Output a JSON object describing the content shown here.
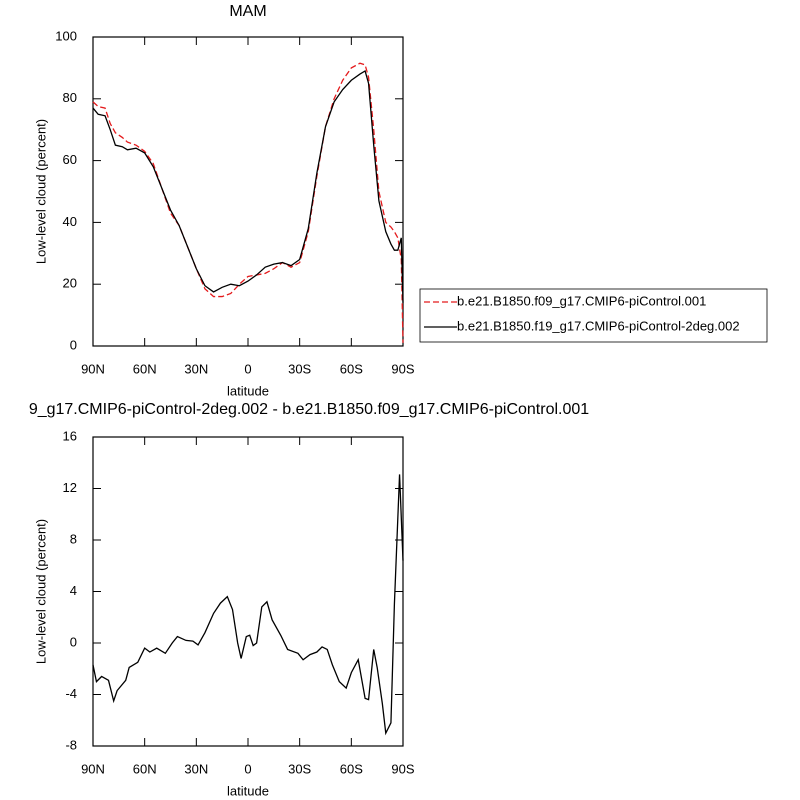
{
  "chart_data": [
    {
      "type": "line",
      "title": "MAM",
      "xlabel": "latitude",
      "ylabel": "Low-level cloud (percent)",
      "x": [
        90,
        87,
        83,
        80,
        77,
        73,
        70,
        65,
        60,
        55,
        50,
        45,
        40,
        35,
        30,
        25,
        20,
        15,
        10,
        5,
        0,
        -5,
        -10,
        -15,
        -20,
        -25,
        -30,
        -35,
        -40,
        -45,
        -50,
        -55,
        -60,
        -65,
        -68,
        -70,
        -73,
        -76,
        -80,
        -83,
        -85,
        -87,
        -89,
        -90
      ],
      "series": [
        {
          "name": "b.e21.B1850.f09_g17.CMIP6-piControl.001",
          "color": "#e41a1c",
          "dash": "dashed",
          "values": [
            79,
            77.5,
            77,
            72,
            69,
            67.5,
            66,
            65,
            63,
            59,
            51,
            43,
            39,
            32,
            25,
            18.5,
            16,
            16,
            17,
            20,
            22.5,
            23,
            23.5,
            25,
            27,
            25.5,
            27,
            37,
            55,
            71,
            80,
            86,
            90,
            91.5,
            91,
            87,
            70,
            50,
            40,
            38.5,
            37,
            35,
            28,
            1
          ]
        },
        {
          "name": "b.e21.B1850.f19_g17.CMIP6-piControl-2deg.002",
          "color": "#000000",
          "dash": "solid",
          "values": [
            77,
            75,
            74.5,
            70,
            65,
            64.5,
            63.5,
            64,
            62.5,
            58,
            51,
            44,
            39,
            32,
            25,
            19.5,
            17.5,
            19,
            20,
            19.5,
            21,
            23,
            25.5,
            26.5,
            27,
            26,
            28,
            38,
            56,
            71,
            79,
            83,
            86,
            88,
            89,
            85,
            65,
            47,
            37,
            33,
            31,
            31,
            35,
            14
          ]
        }
      ],
      "xlim": [
        90,
        -90
      ],
      "xticks": [
        {
          "value": 90,
          "label": "90N"
        },
        {
          "value": 60,
          "label": "60N"
        },
        {
          "value": 30,
          "label": "30N"
        },
        0,
        {
          "value": -30,
          "label": "30S"
        },
        {
          "value": -60,
          "label": "60S"
        },
        {
          "value": -90,
          "label": "90S"
        }
      ],
      "ylim": [
        0,
        100
      ],
      "yticks": [
        0,
        20,
        40,
        60,
        80,
        100
      ],
      "legend": "right"
    },
    {
      "type": "line",
      "title": "9_g17.CMIP6-piControl-2deg.002 - b.e21.B1850.f09_g17.CMIP6-piControl.001",
      "xlabel": "latitude",
      "ylabel": "Low-level cloud (percent)",
      "x": [
        90,
        88,
        85,
        81,
        78,
        76,
        71,
        69,
        64,
        60,
        57,
        53,
        48,
        44,
        41,
        36,
        32,
        29,
        25,
        20,
        16,
        12,
        9,
        6,
        4,
        1,
        -1,
        -3,
        -5,
        -8,
        -11,
        -14,
        -19,
        -23,
        -29,
        -32,
        -36,
        -40,
        -43,
        -46,
        -49,
        -53,
        -57,
        -60,
        -64,
        -68,
        -70,
        -73,
        -75,
        -78,
        -80,
        -83,
        -85,
        -88,
        -90
      ],
      "series": [
        {
          "color": "#000000",
          "dash": "solid",
          "values": [
            -1.7,
            -3,
            -2.6,
            -2.9,
            -4.5,
            -3.7,
            -2.9,
            -1.9,
            -1.5,
            -0.4,
            -0.7,
            -0.4,
            -0.8,
            0,
            0.5,
            0.2,
            0.15,
            -0.15,
            0.8,
            2.3,
            3.1,
            3.6,
            2.6,
            0,
            -1.2,
            0.5,
            0.6,
            -0.2,
            0,
            2.8,
            3.2,
            1.8,
            0.6,
            -0.5,
            -0.8,
            -1.3,
            -0.9,
            -0.7,
            -0.3,
            -0.5,
            -1.7,
            -3,
            -3.5,
            -2.3,
            -1.3,
            -4.3,
            -4.4,
            -0.5,
            -1.9,
            -4.7,
            -7,
            -6.2,
            3,
            13.1,
            6.4
          ]
        }
      ],
      "xlim": [
        90,
        -90
      ],
      "xticks": [
        {
          "value": 90,
          "label": "90N"
        },
        {
          "value": 60,
          "label": "60N"
        },
        {
          "value": 30,
          "label": "30N"
        },
        0,
        {
          "value": -30,
          "label": "30S"
        },
        {
          "value": -60,
          "label": "60S"
        },
        {
          "value": -90,
          "label": "90S"
        }
      ],
      "ylim": [
        -8,
        16
      ],
      "yticks": [
        -8,
        -4,
        0,
        4,
        8,
        12,
        16
      ]
    }
  ]
}
